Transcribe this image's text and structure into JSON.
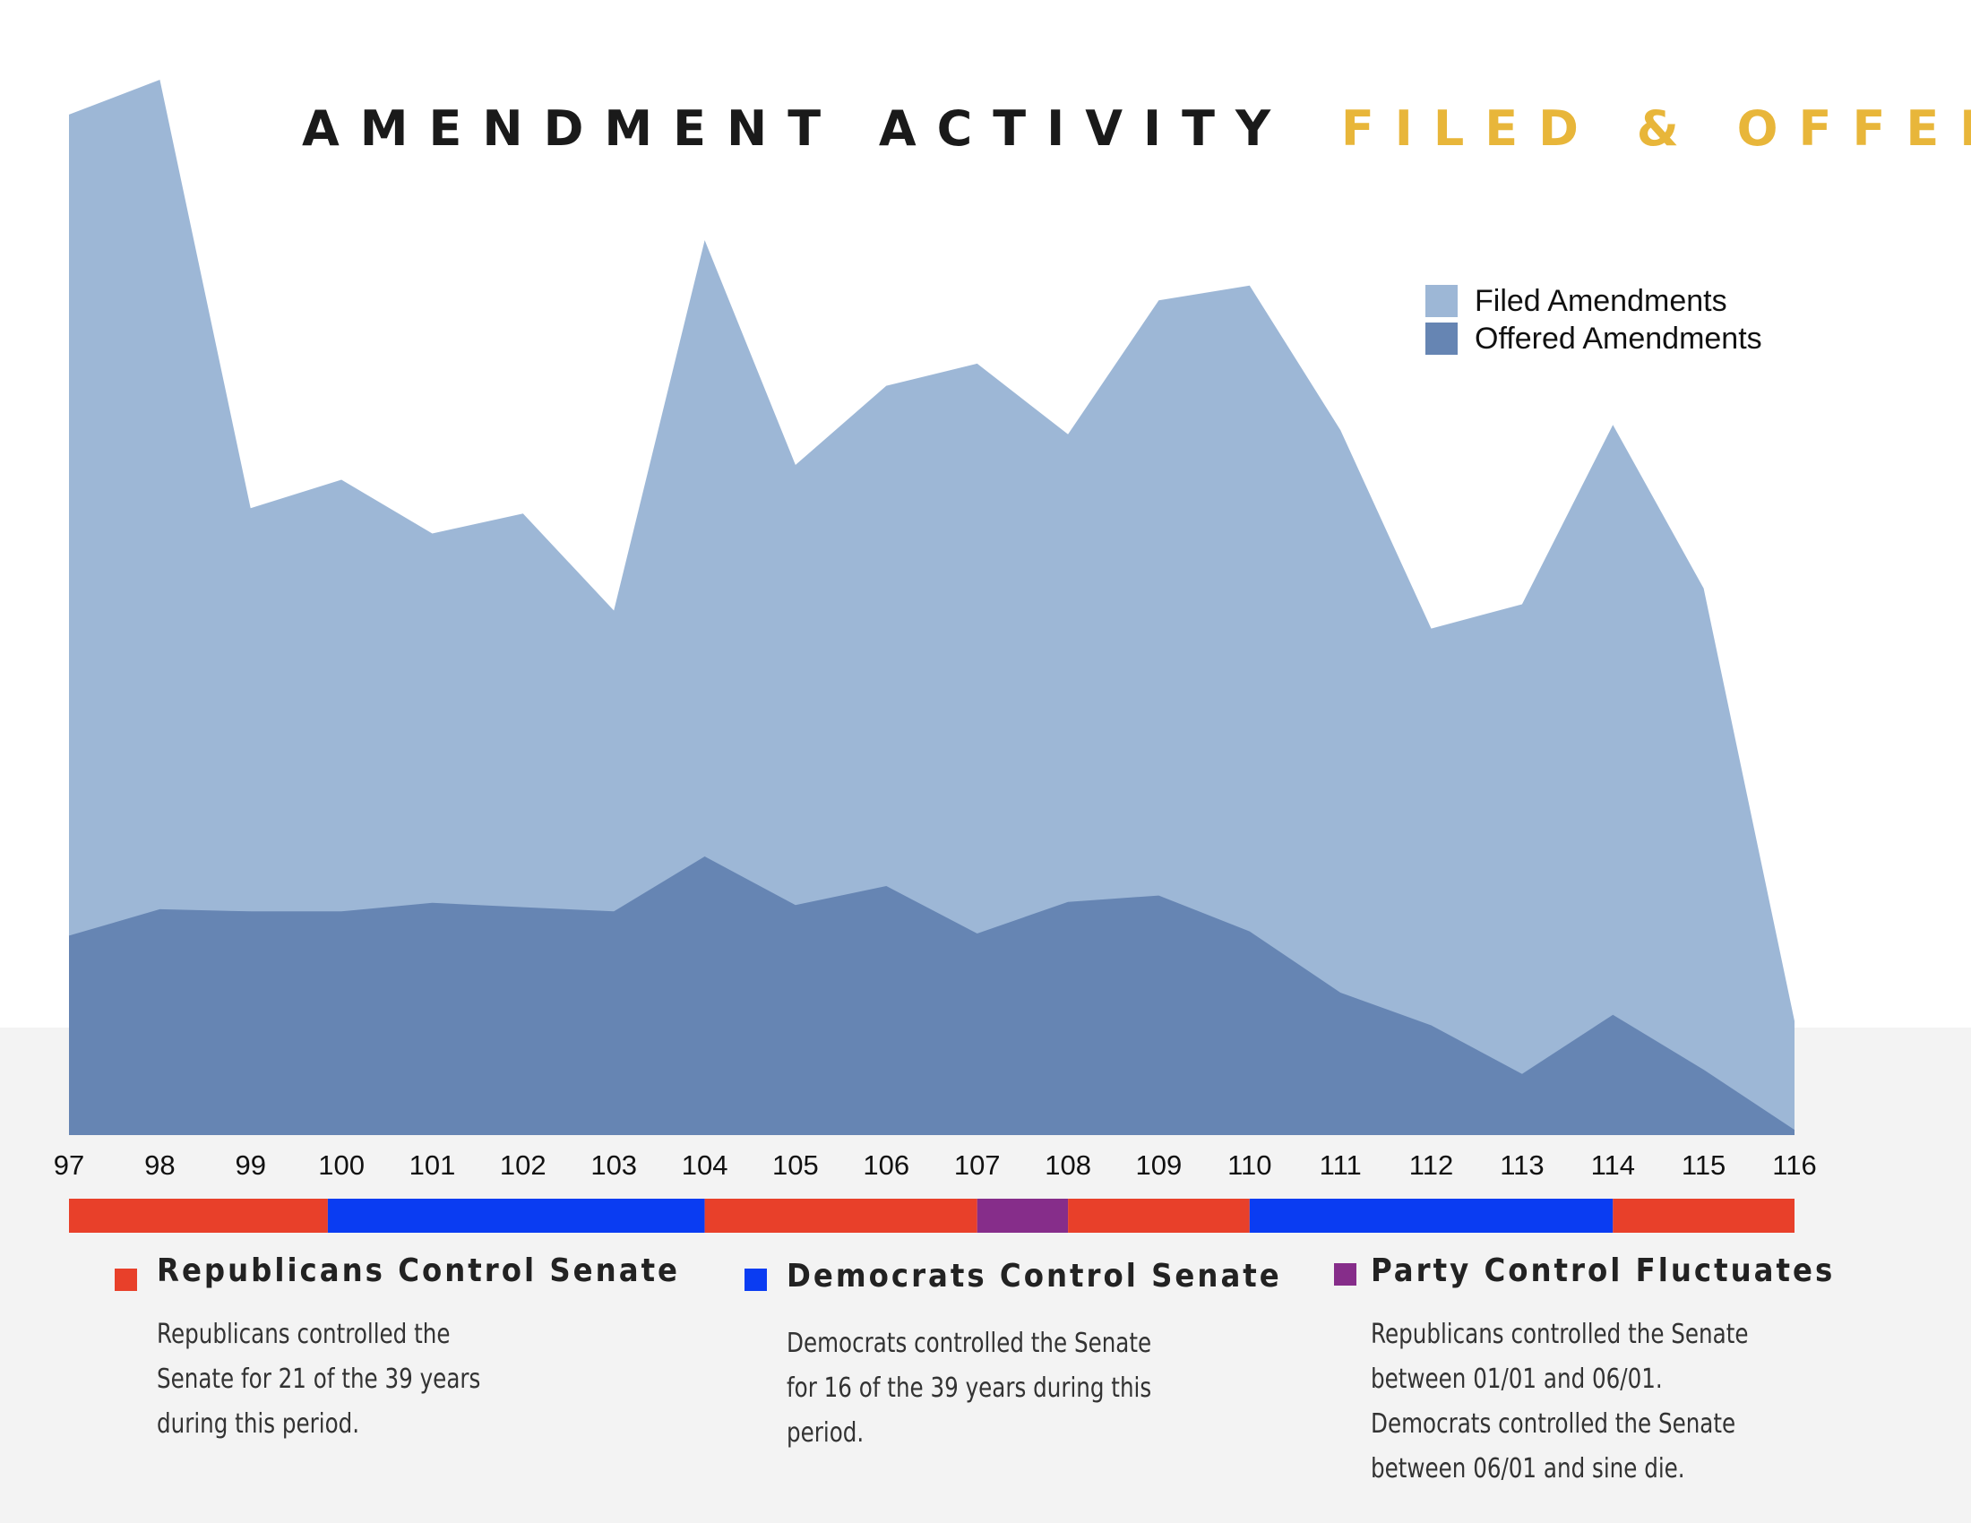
{
  "chart_data": {
    "type": "area",
    "title_parts": [
      {
        "text": "AMENDMENT ACTIVITY",
        "color": "#1a1a1a"
      },
      {
        "text": "FILED & OFFERED",
        "color": "#e8b63a"
      }
    ],
    "categories": [
      "97",
      "98",
      "99",
      "100",
      "101",
      "102",
      "103",
      "104",
      "105",
      "106",
      "107",
      "108",
      "109",
      "110",
      "111",
      "112",
      "113",
      "114",
      "115",
      "116"
    ],
    "ylim": [
      0,
      1000
    ],
    "series": [
      {
        "name": "Filed Amendments",
        "color": "#9db7d6",
        "values": [
          967,
          1000,
          594,
          621,
          570,
          589,
          497,
          848,
          635,
          710,
          731,
          664,
          791,
          805,
          668,
          480,
          503,
          673,
          518,
          108
        ]
      },
      {
        "name": "Offered Amendments",
        "color": "#6685b3",
        "values": [
          189,
          214,
          212,
          212,
          220,
          216,
          212,
          264,
          218,
          236,
          191,
          221,
          227,
          193,
          135,
          104,
          58,
          114,
          62,
          5
        ]
      }
    ],
    "party_bar": [
      {
        "from": "97",
        "to": "99.85",
        "party": "Republican"
      },
      {
        "from": "99.85",
        "to": "104",
        "party": "Democrat"
      },
      {
        "from": "104",
        "to": "107",
        "party": "Republican"
      },
      {
        "from": "107",
        "to": "108",
        "party": "Fluctuates"
      },
      {
        "from": "108",
        "to": "110",
        "party": "Republican"
      },
      {
        "from": "110",
        "to": "114",
        "party": "Democrat"
      },
      {
        "from": "114",
        "to": "116",
        "party": "Republican"
      }
    ],
    "party_colors": {
      "Republican": "#e8402a",
      "Democrat": "#0a3cf2",
      "Fluctuates": "#862d8a"
    }
  },
  "info": {
    "republicans": {
      "heading": "Republicans Control Senate",
      "body": "Republicans controlled the\nSenate  for 21 of the 39 years\nduring this period.",
      "color": "#e8402a"
    },
    "democrats": {
      "heading": "Democrats Control Senate",
      "body": "Democrats controlled the Senate\nfor 16  of the 39 years during this\nperiod.",
      "color": "#0a3cf2"
    },
    "fluctuates": {
      "heading": "Party Control Fluctuates",
      "body": "Republicans controlled the Senate\nbetween 01/01 and 06/01.\nDemocrats controlled the Senate\nbetween 06/01 and sine die.",
      "color": "#862d8a"
    }
  }
}
